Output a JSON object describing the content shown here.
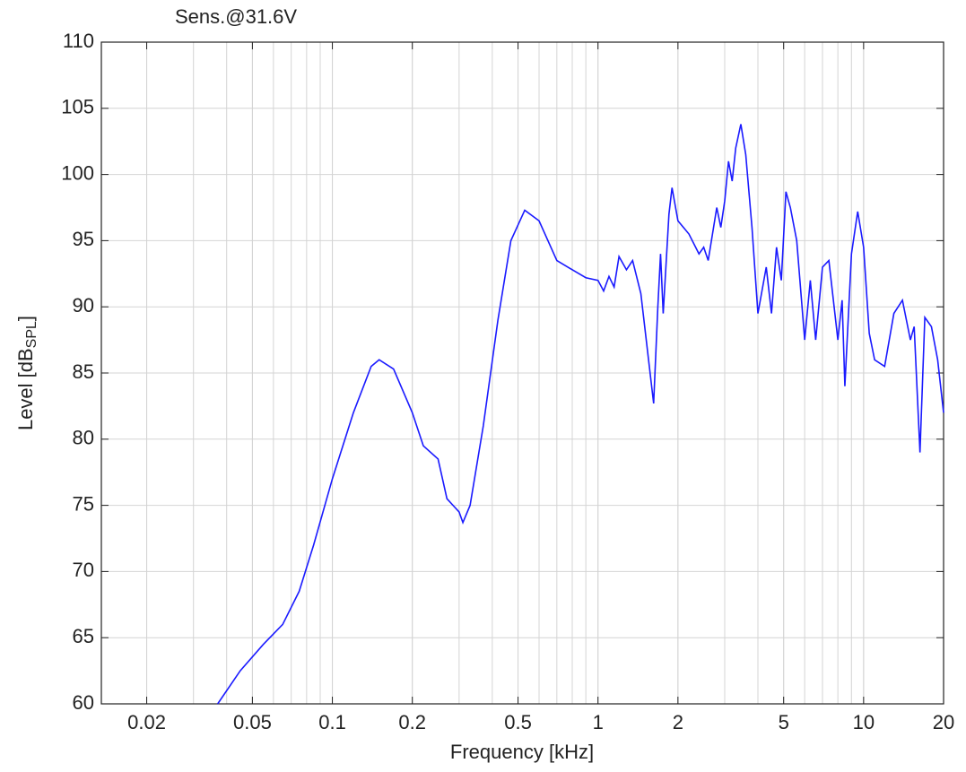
{
  "chart_data": {
    "type": "line",
    "title": "Sens.@31.6V",
    "xlabel": "Frequency [kHz]",
    "ylabel_parts": [
      "Level [dB",
      "SPL",
      "]"
    ],
    "xscale": "log",
    "grid": true,
    "minor_grid": true,
    "xlim": [
      0.0135,
      20
    ],
    "ylim": [
      60,
      110
    ],
    "xticks": [
      0.02,
      0.05,
      0.1,
      0.2,
      0.5,
      1,
      2,
      5,
      10,
      20
    ],
    "yticks": [
      60,
      65,
      70,
      75,
      80,
      85,
      90,
      95,
      100,
      105,
      110
    ],
    "x": [
      0.037,
      0.045,
      0.055,
      0.065,
      0.075,
      0.085,
      0.1,
      0.12,
      0.14,
      0.15,
      0.17,
      0.2,
      0.22,
      0.25,
      0.27,
      0.3,
      0.31,
      0.33,
      0.37,
      0.42,
      0.47,
      0.53,
      0.6,
      0.7,
      0.8,
      0.9,
      1.0,
      1.05,
      1.1,
      1.15,
      1.2,
      1.28,
      1.35,
      1.45,
      1.55,
      1.62,
      1.68,
      1.72,
      1.76,
      1.85,
      1.9,
      2.0,
      2.2,
      2.4,
      2.5,
      2.6,
      2.8,
      2.9,
      3.0,
      3.1,
      3.2,
      3.3,
      3.45,
      3.6,
      3.8,
      4.0,
      4.3,
      4.5,
      4.7,
      4.9,
      5.1,
      5.3,
      5.6,
      6.0,
      6.3,
      6.6,
      7.0,
      7.4,
      8.0,
      8.3,
      8.5,
      9.0,
      9.5,
      10,
      10.5,
      11,
      12,
      13,
      14,
      15,
      15.5,
      16.3,
      17,
      18,
      19,
      20
    ],
    "series": [
      {
        "color": "#1a1aff",
        "values": [
          60,
          62.5,
          64.5,
          66,
          68.5,
          72,
          77,
          82,
          85.5,
          86,
          85.3,
          82,
          79.5,
          78.5,
          75.5,
          74.5,
          73.7,
          75,
          81,
          89,
          95,
          97.3,
          96.5,
          93.5,
          92.8,
          92.2,
          92,
          91.2,
          92.3,
          91.5,
          93.8,
          92.8,
          93.5,
          91,
          86,
          82.7,
          90,
          94,
          89.5,
          97,
          99,
          96.5,
          95.5,
          94,
          94.5,
          93.5,
          97.5,
          96,
          98,
          101,
          99.5,
          102,
          103.8,
          101.5,
          96,
          89.5,
          93,
          89.5,
          94.5,
          92,
          98.7,
          97.5,
          95,
          87.5,
          92,
          87.5,
          93,
          93.5,
          87.5,
          90.5,
          84,
          94,
          97.2,
          94.5,
          88,
          86,
          85.5,
          89.5,
          90.5,
          87.5,
          88.5,
          79,
          89.2,
          88.5,
          86,
          82
        ]
      }
    ]
  }
}
